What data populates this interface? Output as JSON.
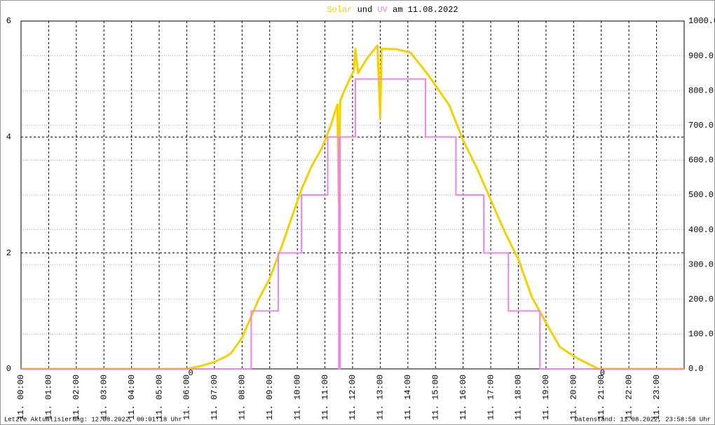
{
  "chart_data": {
    "type": "line",
    "title_words": [
      "und",
      "am 11.08.2022"
    ],
    "footer_left": "Letzte Aktualisierung: 12.08.2022, 00:01:18 Uhr",
    "footer_right": "Datenstand: 11.08.2022, 23:58:58 Uhr",
    "xlim": [
      0,
      24
    ],
    "xticks": [
      {
        "value": 0,
        "label": "11. 00:00"
      },
      {
        "value": 1,
        "label": "11. 01:00"
      },
      {
        "value": 2,
        "label": "11. 02:00"
      },
      {
        "value": 3,
        "label": "11. 03:00"
      },
      {
        "value": 4,
        "label": "11. 04:00"
      },
      {
        "value": 5,
        "label": "11. 05:00"
      },
      {
        "value": 6,
        "label": "11. 06:00"
      },
      {
        "value": 7,
        "label": "11. 07:00"
      },
      {
        "value": 8,
        "label": "11. 08:00"
      },
      {
        "value": 9,
        "label": "11. 09:00"
      },
      {
        "value": 10,
        "label": "11. 10:00"
      },
      {
        "value": 11,
        "label": "11. 11:00"
      },
      {
        "value": 12,
        "label": "11. 12:00"
      },
      {
        "value": 13,
        "label": "11. 13:00"
      },
      {
        "value": 14,
        "label": "11. 14:00"
      },
      {
        "value": 15,
        "label": "11. 15:00"
      },
      {
        "value": 16,
        "label": "11. 16:00"
      },
      {
        "value": 17,
        "label": "11. 17:00"
      },
      {
        "value": 18,
        "label": "11. 18:00"
      },
      {
        "value": 19,
        "label": "11. 19:00"
      },
      {
        "value": 20,
        "label": "11. 20:00"
      },
      {
        "value": 21,
        "label": "11. 21:00"
      },
      {
        "value": 22,
        "label": "11. 22:00"
      },
      {
        "value": 23,
        "label": "11. 23:00"
      }
    ],
    "ylim": [
      0,
      6
    ],
    "yticks": [
      0,
      2,
      4,
      6
    ],
    "y2lim": [
      0,
      1000
    ],
    "y2ticks": [
      {
        "value": 0,
        "label": "0.0"
      },
      {
        "value": 100,
        "label": "100.0"
      },
      {
        "value": 200,
        "label": "200.0"
      },
      {
        "value": 300,
        "label": "300.0"
      },
      {
        "value": 400,
        "label": "400.0"
      },
      {
        "value": 500,
        "label": "500.0"
      },
      {
        "value": 600,
        "label": "600.0"
      },
      {
        "value": 700,
        "label": "700.0"
      },
      {
        "value": 800,
        "label": "800.0"
      },
      {
        "value": 900,
        "label": "900.0"
      },
      {
        "value": 1000,
        "label": "1000.0"
      }
    ],
    "annotations": [
      {
        "x": 6,
        "label": "0"
      },
      {
        "x": 20.9,
        "label": "0"
      }
    ],
    "series": [
      {
        "name": "Solar",
        "color": "#f5d000",
        "axis": "y2",
        "x": [
          0,
          6.0,
          6.5,
          7.0,
          7.4,
          7.6,
          8.0,
          8.6,
          9.0,
          9.4,
          10.15,
          10.5,
          10.9,
          11.2,
          11.45,
          11.5,
          11.55,
          11.7,
          12.05,
          12.1,
          12.2,
          12.5,
          12.9,
          13.0,
          13.05,
          13.6,
          14.1,
          14.7,
          15.5,
          16.0,
          16.5,
          17.0,
          17.5,
          18.0,
          18.5,
          19.0,
          19.5,
          20.1,
          20.6,
          20.9,
          24
        ],
        "values": [
          0,
          0,
          8,
          20,
          35,
          45,
          90,
          200,
          260,
          345,
          516,
          580,
          637,
          698,
          760,
          480,
          770,
          800,
          859,
          920,
          850,
          890,
          930,
          720,
          920,
          919,
          909,
          849,
          758,
          657,
          577,
          486,
          395,
          315,
          204,
          133,
          63,
          32,
          12,
          0,
          0
        ]
      },
      {
        "name": "UV",
        "color": "#ee82ee",
        "axis": "y",
        "x": [
          0,
          8.33,
          8.33,
          9.31,
          9.31,
          10.15,
          10.15,
          11.1,
          11.1,
          11.5,
          11.5,
          11.55,
          11.55,
          12.1,
          12.1,
          14.64,
          14.64,
          15.74,
          15.74,
          16.75,
          16.75,
          17.64,
          17.64,
          18.78,
          18.78,
          24
        ],
        "values": [
          0,
          0,
          1,
          1,
          2,
          2,
          3,
          3,
          4,
          4,
          0,
          0,
          4,
          4,
          5,
          5,
          4,
          4,
          3,
          3,
          2,
          2,
          1,
          1,
          0,
          0
        ]
      }
    ]
  }
}
